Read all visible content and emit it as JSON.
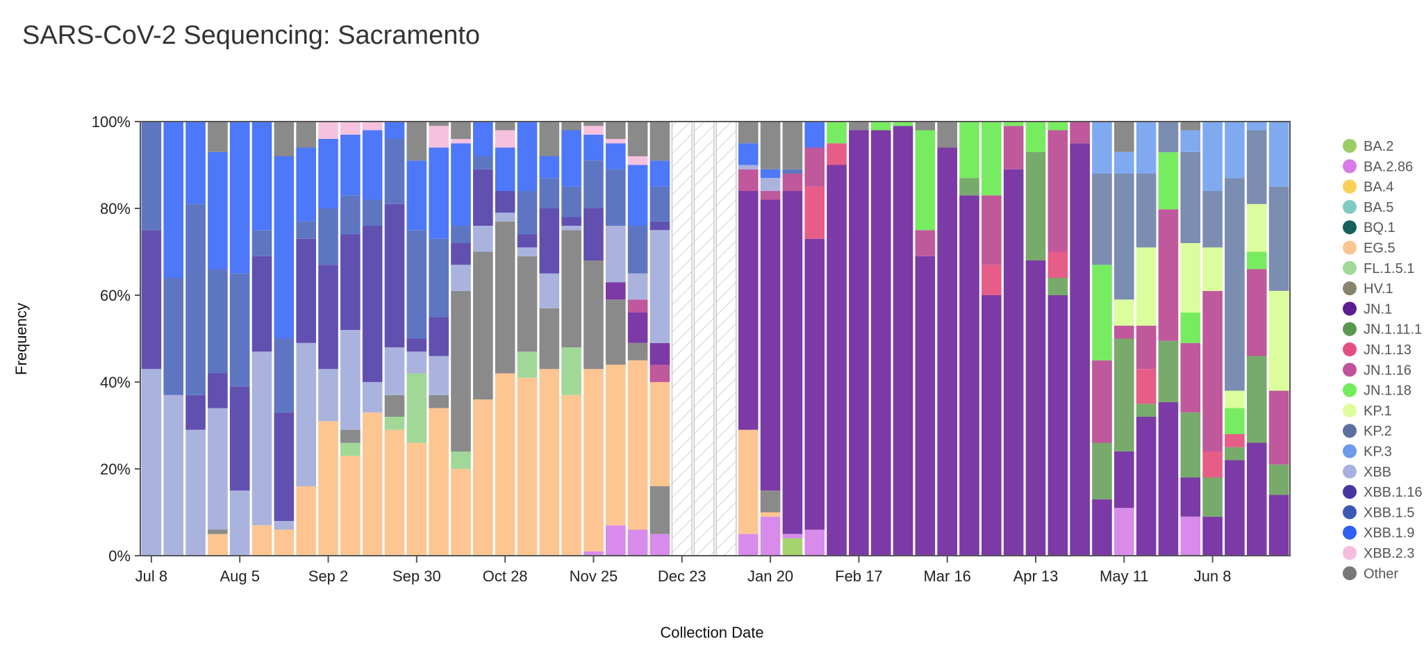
{
  "title": "SARS-CoV-2 Sequencing: Sacramento",
  "chart_data": {
    "type": "bar",
    "stacked": true,
    "xlabel": "Collection Date",
    "ylabel": "Frequency",
    "ylim": [
      0,
      100
    ],
    "yticks": [
      "0%",
      "20%",
      "40%",
      "60%",
      "80%",
      "100%"
    ],
    "x_ticks": [
      {
        "index": 0,
        "label": "Jul 8"
      },
      {
        "index": 4,
        "label": "Aug 5"
      },
      {
        "index": 8,
        "label": "Sep 2"
      },
      {
        "index": 12,
        "label": "Sep 30"
      },
      {
        "index": 16,
        "label": "Oct 28"
      },
      {
        "index": 20,
        "label": "Nov 25"
      },
      {
        "index": 24,
        "label": "Dec 23"
      },
      {
        "index": 28,
        "label": "Jan 20"
      },
      {
        "index": 32,
        "label": "Feb 17"
      },
      {
        "index": 36,
        "label": "Mar 16"
      },
      {
        "index": 40,
        "label": "Apr 13"
      },
      {
        "index": 44,
        "label": "May 11"
      },
      {
        "index": 48,
        "label": "Jun 8"
      }
    ],
    "no_data_weeks": [
      24,
      25,
      26
    ],
    "legend": [
      {
        "name": "BA.2",
        "color": "#9ccc65"
      },
      {
        "name": "BA.2.86",
        "color": "#d87be6"
      },
      {
        "name": "BA.4",
        "color": "#f9cf57"
      },
      {
        "name": "BA.5",
        "color": "#7fcbc4"
      },
      {
        "name": "BQ.1",
        "color": "#15605c"
      },
      {
        "name": "EG.5",
        "color": "#fbc592"
      },
      {
        "name": "FL.1.5.1",
        "color": "#a1d898"
      },
      {
        "name": "HV.1",
        "color": "#87836f"
      },
      {
        "name": "JN.1",
        "color": "#5d1d91"
      },
      {
        "name": "JN.1.11.1",
        "color": "#5a9752"
      },
      {
        "name": "JN.1.13",
        "color": "#e54e82"
      },
      {
        "name": "JN.1.16",
        "color": "#c0529a"
      },
      {
        "name": "JN.1.18",
        "color": "#72ec5a"
      },
      {
        "name": "KP.1",
        "color": "#dffd9b"
      },
      {
        "name": "KP.2",
        "color": "#5b6fa0"
      },
      {
        "name": "KP.3",
        "color": "#6d9be9"
      },
      {
        "name": "XBB",
        "color": "#a7b1df"
      },
      {
        "name": "XBB.1.16",
        "color": "#4636a3"
      },
      {
        "name": "XBB.1.5",
        "color": "#3d58b3"
      },
      {
        "name": "XBB.1.9",
        "color": "#2c61f2"
      },
      {
        "name": "XBB.2.3",
        "color": "#f5bcdc"
      },
      {
        "name": "Other",
        "color": "#777777"
      }
    ],
    "bar_colors": {
      "XBB": "#aab3de",
      "XBB.1.16": "#6150b0",
      "XBB.1.5": "#5e76c2",
      "XBB.1.9": "#4d78fa",
      "EG.5": "#fdc592",
      "HV.1": "#8a877a",
      "FL.1.5.1": "#a1d898",
      "XBB.2.3": "#f6c1de",
      "Other": "#8a8a8a",
      "BA.2.86": "#d88bea",
      "BA.2": "#a6d46c",
      "JN.1": "#7b3aa6",
      "JN.1.16": "#c0589c",
      "JN.1.13": "#e65d88",
      "JN.1.18": "#78ec60",
      "JN.1.11.1": "#78aa6c",
      "KP.1": "#dcfd9d",
      "KP.2": "#7b8db0",
      "KP.3": "#80aaf0",
      "KP.2b": "#5b6fbf"
    },
    "series_by_week": [
      [
        [
          "XBB",
          43
        ],
        [
          "XBB.1.16",
          32
        ],
        [
          "XBB.1.5",
          25
        ]
      ],
      [
        [
          "XBB",
          37
        ],
        [
          "XBB.1.5",
          27
        ],
        [
          "XBB.1.9",
          36
        ]
      ],
      [
        [
          "XBB",
          29
        ],
        [
          "XBB.1.16",
          8
        ],
        [
          "XBB.1.5",
          44
        ],
        [
          "XBB.1.9",
          19
        ]
      ],
      [
        [
          "EG.5",
          5
        ],
        [
          "Other",
          1
        ],
        [
          "XBB",
          28
        ],
        [
          "XBB.1.16",
          8
        ],
        [
          "XBB.1.5",
          24
        ],
        [
          "XBB.1.9",
          27
        ],
        [
          "Other",
          7
        ]
      ],
      [
        [
          "XBB",
          15
        ],
        [
          "XBB.1.16",
          24
        ],
        [
          "XBB.1.5",
          26
        ],
        [
          "XBB.1.9",
          35
        ]
      ],
      [
        [
          "EG.5",
          7
        ],
        [
          "XBB",
          40
        ],
        [
          "XBB.1.16",
          22
        ],
        [
          "XBB.1.5",
          6
        ],
        [
          "XBB.1.9",
          25
        ]
      ],
      [
        [
          "EG.5",
          6
        ],
        [
          "XBB",
          2
        ],
        [
          "XBB.1.16",
          25
        ],
        [
          "XBB.1.5",
          17
        ],
        [
          "XBB.1.9",
          42
        ],
        [
          "Other",
          8
        ]
      ],
      [
        [
          "EG.5",
          16
        ],
        [
          "XBB",
          33
        ],
        [
          "XBB.1.16",
          24
        ],
        [
          "XBB.1.5",
          4
        ],
        [
          "XBB.1.9",
          17
        ],
        [
          "Other",
          6
        ]
      ],
      [
        [
          "EG.5",
          31
        ],
        [
          "XBB",
          12
        ],
        [
          "XBB.1.16",
          24
        ],
        [
          "XBB.1.5",
          13
        ],
        [
          "XBB.1.9",
          16
        ],
        [
          "XBB.2.3",
          4
        ]
      ],
      [
        [
          "EG.5",
          23
        ],
        [
          "FL.1.5.1",
          3
        ],
        [
          "Other",
          3
        ],
        [
          "XBB",
          23
        ],
        [
          "XBB.1.16",
          22
        ],
        [
          "XBB.1.5",
          9
        ],
        [
          "XBB.1.9",
          14
        ],
        [
          "XBB.2.3",
          3
        ]
      ],
      [
        [
          "EG.5",
          33
        ],
        [
          "XBB",
          7
        ],
        [
          "XBB.1.16",
          36
        ],
        [
          "XBB.1.5",
          6
        ],
        [
          "XBB.1.9",
          16
        ],
        [
          "XBB.2.3",
          2
        ]
      ],
      [
        [
          "EG.5",
          29
        ],
        [
          "FL.1.5.1",
          3
        ],
        [
          "Other",
          5
        ],
        [
          "XBB",
          11
        ],
        [
          "XBB.1.16",
          33
        ],
        [
          "XBB.1.5",
          15
        ],
        [
          "XBB.1.9",
          4
        ]
      ],
      [
        [
          "EG.5",
          26
        ],
        [
          "FL.1.5.1",
          16
        ],
        [
          "XBB",
          5
        ],
        [
          "XBB.1.16",
          3
        ],
        [
          "XBB.1.5",
          25
        ],
        [
          "XBB.1.9",
          16
        ],
        [
          "Other",
          9
        ]
      ],
      [
        [
          "EG.5",
          34
        ],
        [
          "Other",
          3
        ],
        [
          "XBB",
          9
        ],
        [
          "XBB.1.16",
          9
        ],
        [
          "XBB.1.5",
          18
        ],
        [
          "XBB.1.9",
          21
        ],
        [
          "XBB.2.3",
          5
        ],
        [
          "Other",
          1
        ]
      ],
      [
        [
          "EG.5",
          20
        ],
        [
          "FL.1.5.1",
          4
        ],
        [
          "Other",
          37
        ],
        [
          "XBB",
          6
        ],
        [
          "XBB.1.16",
          5
        ],
        [
          "XBB.1.5",
          4
        ],
        [
          "XBB.1.9",
          19
        ],
        [
          "XBB.2.3",
          1
        ],
        [
          "Other",
          4
        ]
      ],
      [
        [
          "EG.5",
          36
        ],
        [
          "Other",
          34
        ],
        [
          "XBB",
          6
        ],
        [
          "XBB.1.16",
          13
        ],
        [
          "XBB.1.5",
          3
        ],
        [
          "XBB.1.9",
          8
        ]
      ],
      [
        [
          "EG.5",
          42
        ],
        [
          "Other",
          35
        ],
        [
          "XBB",
          2
        ],
        [
          "XBB.1.16",
          5
        ],
        [
          "XBB.1.5",
          0
        ],
        [
          "XBB.1.9",
          10
        ],
        [
          "XBB.2.3",
          4
        ],
        [
          "Other",
          2
        ]
      ],
      [
        [
          "EG.5",
          41
        ],
        [
          "FL.1.5.1",
          6
        ],
        [
          "Other",
          22
        ],
        [
          "XBB",
          2
        ],
        [
          "XBB.1.16",
          3
        ],
        [
          "XBB.1.5",
          10
        ],
        [
          "XBB.1.9",
          16
        ]
      ],
      [
        [
          "EG.5",
          43
        ],
        [
          "Other",
          14
        ],
        [
          "XBB",
          8
        ],
        [
          "XBB.1.16",
          15
        ],
        [
          "XBB.1.5",
          7
        ],
        [
          "XBB.1.9",
          5
        ],
        [
          "Other",
          8
        ]
      ],
      [
        [
          "EG.5",
          37
        ],
        [
          "FL.1.5.1",
          11
        ],
        [
          "Other",
          27
        ],
        [
          "XBB",
          1
        ],
        [
          "XBB.1.16",
          2
        ],
        [
          "XBB.1.5",
          7
        ],
        [
          "XBB.1.9",
          13
        ],
        [
          "Other",
          2
        ]
      ],
      [
        [
          "BA.2.86",
          1
        ],
        [
          "EG.5",
          42
        ],
        [
          "Other",
          25
        ],
        [
          "XBB.1.16",
          12
        ],
        [
          "XBB.1.5",
          11
        ],
        [
          "XBB.1.9",
          6
        ],
        [
          "XBB.2.3",
          2
        ],
        [
          "Other",
          1
        ]
      ],
      [
        [
          "BA.2.86",
          7
        ],
        [
          "EG.5",
          37
        ],
        [
          "Other",
          15
        ],
        [
          "JN.1",
          4
        ],
        [
          "XBB",
          13
        ],
        [
          "XBB.1.5",
          13
        ],
        [
          "XBB.1.9",
          6
        ],
        [
          "XBB.2.3",
          1
        ],
        [
          "Other",
          4
        ]
      ],
      [
        [
          "BA.2.86",
          6
        ],
        [
          "EG.5",
          39
        ],
        [
          "Other",
          4
        ],
        [
          "JN.1",
          7
        ],
        [
          "JN.1.16",
          3
        ],
        [
          "XBB",
          6
        ],
        [
          "XBB.1.5",
          11
        ],
        [
          "XBB.1.9",
          14
        ],
        [
          "XBB.2.3",
          2
        ],
        [
          "Other",
          8
        ]
      ],
      [
        [
          "BA.2.86",
          5
        ],
        [
          "Other",
          11
        ],
        [
          "EG.5",
          24
        ],
        [
          "JN.1.16",
          4
        ],
        [
          "JN.1",
          5
        ],
        [
          "XBB",
          26
        ],
        [
          "XBB.1.16",
          2
        ],
        [
          "XBB.1.5",
          8
        ],
        [
          "XBB.1.9",
          6
        ],
        [
          "Other",
          9
        ]
      ],
      [],
      [],
      [],
      [
        [
          "BA.2.86",
          5
        ],
        [
          "EG.5",
          24
        ],
        [
          "JN.1",
          55
        ],
        [
          "JN.1.16",
          5
        ],
        [
          "XBB",
          1
        ],
        [
          "XBB.1.9",
          5
        ],
        [
          "Other",
          5
        ]
      ],
      [
        [
          "BA.2.86",
          9
        ],
        [
          "EG.5",
          1
        ],
        [
          "Other",
          5
        ],
        [
          "JN.1",
          67
        ],
        [
          "JN.1.16",
          2
        ],
        [
          "XBB",
          3
        ],
        [
          "XBB.1.9",
          2
        ],
        [
          "Other",
          11
        ]
      ],
      [
        [
          "BA.2",
          4
        ],
        [
          "BA.2.86",
          1
        ],
        [
          "JN.1",
          79
        ],
        [
          "JN.1.16",
          4
        ],
        [
          "XBB.1.5",
          1
        ],
        [
          "Other",
          11
        ]
      ],
      [
        [
          "BA.2.86",
          6
        ],
        [
          "JN.1",
          67
        ],
        [
          "JN.1.13",
          12
        ],
        [
          "JN.1.16",
          9
        ],
        [
          "XBB.1.9",
          6
        ]
      ],
      [
        [
          "JN.1",
          90
        ],
        [
          "JN.1.13",
          5
        ],
        [
          "JN.1.18",
          5
        ]
      ],
      [
        [
          "JN.1",
          98
        ],
        [
          "Other",
          2
        ]
      ],
      [
        [
          "JN.1",
          98
        ],
        [
          "JN.1.18",
          2
        ]
      ],
      [
        [
          "JN.1",
          99
        ],
        [
          "JN.1.18",
          1
        ]
      ],
      [
        [
          "JN.1",
          69
        ],
        [
          "JN.1.16",
          6
        ],
        [
          "JN.1.18",
          23
        ],
        [
          "Other",
          2
        ]
      ],
      [
        [
          "JN.1",
          94
        ],
        [
          "Other",
          6
        ]
      ],
      [
        [
          "JN.1",
          83
        ],
        [
          "JN.1.11.1",
          4
        ],
        [
          "JN.1.18",
          13
        ]
      ],
      [
        [
          "JN.1",
          60
        ],
        [
          "JN.1.13",
          7
        ],
        [
          "JN.1.16",
          16
        ],
        [
          "JN.1.18",
          17
        ]
      ],
      [
        [
          "JN.1",
          89
        ],
        [
          "JN.1.16",
          10
        ],
        [
          "JN.1.18",
          1
        ]
      ],
      [
        [
          "JN.1",
          68
        ],
        [
          "JN.1.11.1",
          25
        ],
        [
          "JN.1.18",
          7
        ]
      ],
      [
        [
          "JN.1",
          60
        ],
        [
          "JN.1.11.1",
          4
        ],
        [
          "JN.1.13",
          6
        ],
        [
          "JN.1.16",
          28
        ],
        [
          "JN.1.18",
          2
        ]
      ],
      [
        [
          "JN.1",
          95
        ],
        [
          "JN.1.16",
          5
        ]
      ],
      [
        [
          "JN.1",
          13
        ],
        [
          "JN.1.11.1",
          13
        ],
        [
          "JN.1.16",
          19
        ],
        [
          "JN.1.18",
          22
        ],
        [
          "KP.2",
          21
        ],
        [
          "KP.3",
          12
        ]
      ],
      [
        [
          "BA.2.86",
          11
        ],
        [
          "JN.1",
          13
        ],
        [
          "JN.1.11.1",
          26
        ],
        [
          "JN.1.16",
          3
        ],
        [
          "KP.1",
          6
        ],
        [
          "KP.2",
          29
        ],
        [
          "KP.3",
          5
        ],
        [
          "Other",
          7
        ]
      ],
      [
        [
          "JN.1",
          32
        ],
        [
          "JN.1.11.1",
          3
        ],
        [
          "JN.1.13",
          8
        ],
        [
          "JN.1.16",
          10
        ],
        [
          "KP.1",
          18
        ],
        [
          "KP.2",
          17
        ],
        [
          "KP.3",
          12
        ]
      ],
      [
        [
          "JN.1",
          35
        ],
        [
          "JN.1.11.1",
          14
        ],
        [
          "JN.1.16",
          30
        ],
        [
          "JN.1.18",
          13
        ],
        [
          "KP.2",
          7
        ]
      ],
      [
        [
          "BA.2.86",
          9
        ],
        [
          "JN.1",
          9
        ],
        [
          "JN.1.11.1",
          15
        ],
        [
          "JN.1.16",
          16
        ],
        [
          "JN.1.18",
          7
        ],
        [
          "KP.1",
          16
        ],
        [
          "KP.2",
          21
        ],
        [
          "KP.3",
          5
        ],
        [
          "Other",
          2
        ]
      ],
      [
        [
          "JN.1",
          9
        ],
        [
          "JN.1.11.1",
          9
        ],
        [
          "JN.1.13",
          6
        ],
        [
          "JN.1.16",
          37
        ],
        [
          "KP.1",
          10
        ],
        [
          "KP.2",
          13
        ],
        [
          "KP.3",
          16
        ]
      ],
      [
        [
          "JN.1",
          22
        ],
        [
          "JN.1.11.1",
          3
        ],
        [
          "JN.1.13",
          3
        ],
        [
          "JN.1.18",
          6
        ],
        [
          "KP.1",
          4
        ],
        [
          "KP.2",
          49
        ],
        [
          "KP.3",
          13
        ]
      ],
      [
        [
          "JN.1",
          26
        ],
        [
          "JN.1.11.1",
          20
        ],
        [
          "JN.1.16",
          20
        ],
        [
          "JN.1.18",
          4
        ],
        [
          "KP.1",
          11
        ],
        [
          "KP.2",
          17
        ],
        [
          "KP.3",
          2
        ]
      ],
      [
        [
          "JN.1",
          14
        ],
        [
          "JN.1.11.1",
          7
        ],
        [
          "JN.1.16",
          17
        ],
        [
          "KP.1",
          23
        ],
        [
          "KP.2",
          24
        ],
        [
          "KP.3",
          15
        ]
      ]
    ]
  }
}
